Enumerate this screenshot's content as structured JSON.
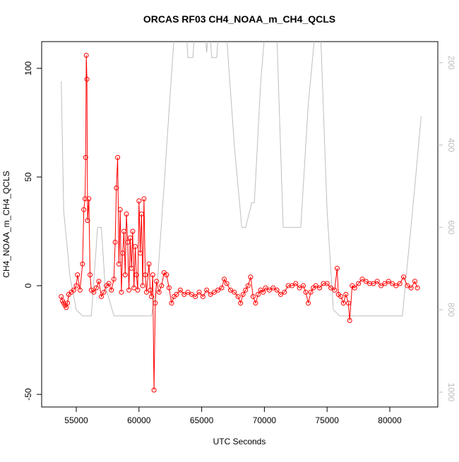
{
  "chart_data": {
    "type": "line",
    "title": "ORCAS RF03 CH4_NOAA_m_CH4_QCLS",
    "x_label": "UTC Seconds",
    "y_label": "CH4_NOAA_m_CH4_QCLS",
    "xlim": [
      52241,
      83829
    ],
    "ylim": [
      -55.8,
      112.3
    ],
    "y2lim": [
      1036,
      149
    ],
    "xticks": [
      55000,
      60000,
      65000,
      70000,
      75000,
      80000
    ],
    "yticks": [
      -50,
      0,
      50,
      100
    ],
    "y2ticks": [
      200,
      400,
      600,
      800,
      1000
    ],
    "y2_color": "#bebebe",
    "series": [
      {
        "color": "#ff0000",
        "markers": true,
        "x": [
          53800,
          53900,
          54000,
          54100,
          54200,
          54300,
          54400,
          54600,
          54800,
          55000,
          55100,
          55300,
          55500,
          55600,
          55700,
          55750,
          55800,
          55850,
          55900,
          56000,
          56100,
          56200,
          56400,
          56600,
          56800,
          57000,
          57200,
          57400,
          57600,
          57800,
          58000,
          58100,
          58200,
          58300,
          58400,
          58500,
          58600,
          58700,
          58800,
          58900,
          59000,
          59100,
          59200,
          59300,
          59400,
          59500,
          59600,
          59700,
          59800,
          59900,
          60000,
          60100,
          60200,
          60300,
          60400,
          60500,
          60600,
          60800,
          60900,
          61000,
          61100,
          61200,
          61300,
          61400,
          61600,
          61800,
          62000,
          62200,
          62400,
          62600,
          62800,
          63000,
          63300,
          63600,
          63900,
          64200,
          64500,
          64800,
          65100,
          65400,
          65700,
          66000,
          66300,
          66600,
          66800,
          67000,
          67300,
          67600,
          67900,
          68100,
          68300,
          68500,
          68700,
          68900,
          69100,
          69300,
          69500,
          69700,
          69900,
          70100,
          70400,
          70700,
          71000,
          71300,
          71600,
          71900,
          72200,
          72500,
          72800,
          73100,
          73300,
          73500,
          73700,
          73900,
          74100,
          74400,
          74700,
          75000,
          75300,
          75600,
          75800,
          75900,
          76100,
          76300,
          76500,
          76700,
          76800,
          77000,
          77200,
          77500,
          77800,
          78100,
          78400,
          78700,
          79000,
          79300,
          79600,
          79900,
          80200,
          80500,
          80800,
          81100,
          81400,
          81700,
          82000,
          82200
        ],
        "values": [
          -5,
          -7,
          -8,
          -9,
          -10,
          -8,
          -4,
          -3,
          -2,
          0,
          5,
          -2,
          10,
          35,
          40,
          59,
          106,
          95,
          30,
          40,
          5,
          -2,
          -3,
          -1,
          2,
          -5,
          -3,
          0,
          1,
          -2,
          3,
          20,
          45,
          59,
          10,
          35,
          -3,
          15,
          25,
          5,
          33,
          20,
          -2,
          22,
          8,
          25,
          -1,
          18,
          5,
          -2,
          39,
          15,
          33,
          0,
          40,
          5,
          -3,
          10,
          -2,
          -5,
          5,
          -48,
          -8,
          2,
          -3,
          0,
          6,
          5,
          -1,
          -8,
          -5,
          -4,
          -2,
          -4,
          -3,
          -4,
          -5,
          -3,
          -5,
          -2,
          -4,
          -3,
          -2,
          -1,
          3,
          1,
          -2,
          -3,
          -5,
          -8,
          -4,
          -2,
          0,
          4,
          -5,
          -8,
          -4,
          -2,
          -3,
          -1,
          -2,
          -1,
          -2,
          -4,
          -3,
          0,
          0,
          1,
          -1,
          0,
          -3,
          -8,
          -3,
          -1,
          0,
          -1,
          1,
          1,
          -1,
          -2,
          8,
          -4,
          -5,
          -8,
          -4,
          -8,
          -16,
          0,
          -1,
          1,
          3,
          2,
          1,
          1,
          2,
          0,
          1,
          2,
          1,
          0,
          1,
          4,
          0,
          -1,
          2,
          -1
        ]
      },
      {
        "color": "#bebebe",
        "axis": "y2",
        "markers": false,
        "x": [
          53800,
          54000,
          54500,
          55000,
          55500,
          56200,
          56700,
          57000,
          57300,
          58000,
          61000,
          61500,
          62000,
          62500,
          62800,
          63800,
          63900,
          64300,
          64400,
          65300,
          65400,
          65500,
          65700,
          65800,
          66200,
          66300,
          67000,
          67600,
          68200,
          68500,
          69000,
          69200,
          69700,
          70000,
          71000,
          71500,
          72900,
          73500,
          74000,
          74500,
          75000,
          75500,
          76000,
          81000,
          82000,
          82500
        ],
        "values": [
          245,
          560,
          720,
          800,
          815,
          815,
          600,
          600,
          740,
          815,
          815,
          720,
          500,
          270,
          140,
          140,
          188,
          188,
          140,
          140,
          175,
          140,
          140,
          188,
          188,
          140,
          140,
          400,
          600,
          600,
          540,
          540,
          250,
          140,
          140,
          600,
          600,
          300,
          140,
          140,
          560,
          800,
          815,
          815,
          500,
          330
        ]
      }
    ]
  }
}
